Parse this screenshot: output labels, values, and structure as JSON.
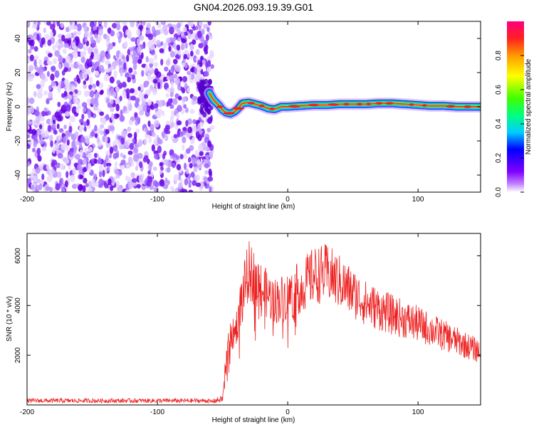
{
  "title": "GN04.2026.093.19.39.G01",
  "chart_data": [
    {
      "type": "heatmap",
      "xlabel": "Height of straight line (km)",
      "ylabel": "Frequency (Hz)",
      "xlim": [
        -200,
        148
      ],
      "ylim": [
        -50,
        50
      ],
      "xticks": [
        -200,
        -100,
        0,
        100
      ],
      "yticks": [
        -40,
        -20,
        0,
        20,
        40
      ],
      "noise_region_x": [
        -200,
        -60
      ],
      "ridge": {
        "x": [
          -60,
          -57,
          -53,
          -50,
          -47,
          -44,
          -41,
          -38,
          -35,
          -30,
          -25,
          -20,
          -15,
          -10,
          -5,
          0,
          10,
          20,
          30,
          40,
          50,
          60,
          70,
          80,
          90,
          100,
          110,
          120,
          130,
          148
        ],
        "y": [
          8,
          4,
          1,
          -2,
          -3.5,
          -4,
          -3,
          -1,
          2,
          2.5,
          1.5,
          0.5,
          -1,
          -1.5,
          0,
          0,
          0.5,
          1,
          1,
          1.5,
          1.5,
          1.5,
          2,
          2,
          1.5,
          1,
          0.5,
          0.5,
          0,
          0
        ]
      },
      "colorbar": {
        "label": "Normalized spectral amplitude",
        "ticks": [
          0.0,
          0.2,
          0.4,
          0.6,
          0.8
        ],
        "range": [
          0,
          1
        ]
      }
    },
    {
      "type": "line",
      "xlabel": "Height of straight line (km)",
      "ylabel": "SNR (10 * v/v)",
      "xlim": [
        -200,
        148
      ],
      "ylim": [
        0,
        6900
      ],
      "xticks": [
        -200,
        -100,
        0,
        100
      ],
      "yticks": [
        2000,
        4000,
        6000
      ],
      "color": "#ee2222",
      "envelope": {
        "x": [
          -200,
          -60,
          -50,
          -48,
          -45,
          -40,
          -35,
          -30,
          -25,
          -20,
          -10,
          0,
          10,
          20,
          30,
          40,
          60,
          80,
          100,
          120,
          148
        ],
        "y": [
          150,
          150,
          300,
          1500,
          2800,
          3200,
          4700,
          5800,
          5500,
          5000,
          4500,
          4700,
          5100,
          5600,
          5700,
          5300,
          4400,
          3900,
          3500,
          3000,
          2300
        ]
      }
    }
  ]
}
